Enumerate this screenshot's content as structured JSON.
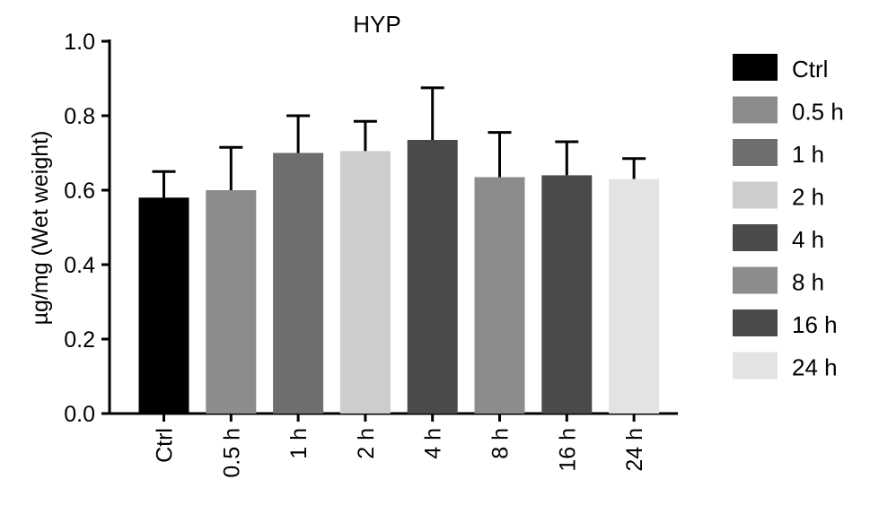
{
  "chart_data": {
    "type": "bar",
    "title": "HYP",
    "xlabel": "",
    "ylabel": "µg/mg (Wet weight)",
    "ylim": [
      0,
      1.0
    ],
    "yticks": [
      "0.0",
      "0.2",
      "0.4",
      "0.6",
      "0.8",
      "1.0"
    ],
    "grid": false,
    "legend_position": "right",
    "categories": [
      "Ctrl",
      "0.5 h",
      "1 h",
      "2 h",
      "4 h",
      "8 h",
      "16 h",
      "24 h"
    ],
    "values": [
      0.58,
      0.6,
      0.7,
      0.705,
      0.735,
      0.635,
      0.64,
      0.63
    ],
    "errors": [
      0.07,
      0.115,
      0.1,
      0.08,
      0.14,
      0.12,
      0.09,
      0.055
    ],
    "colors": [
      "#000000",
      "#8c8c8c",
      "#6e6e6e",
      "#cdcdcd",
      "#4a4a4a",
      "#8c8c8c",
      "#4a4a4a",
      "#e3e3e3"
    ],
    "legend": [
      "Ctrl",
      "0.5 h",
      "1 h",
      "2 h",
      "4 h",
      "8 h",
      "16 h",
      "24 h"
    ]
  }
}
